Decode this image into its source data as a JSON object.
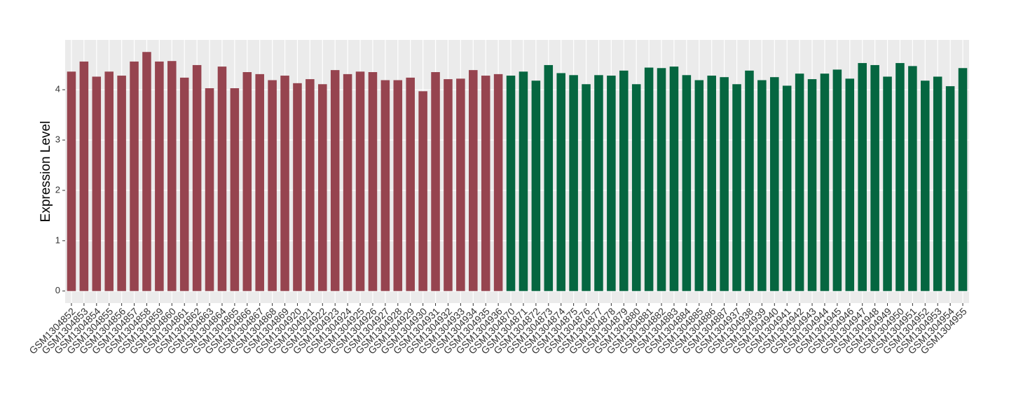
{
  "chart_data": {
    "type": "bar",
    "y_label": "Expression Level",
    "categories": [
      "GSM1304852",
      "GSM1304853",
      "GSM1304854",
      "GSM1304855",
      "GSM1304856",
      "GSM1304857",
      "GSM1304858",
      "GSM1304859",
      "GSM1304860",
      "GSM1304861",
      "GSM1304862",
      "GSM1304863",
      "GSM1304864",
      "GSM1304865",
      "GSM1304866",
      "GSM1304867",
      "GSM1304868",
      "GSM1304869",
      "GSM1304920",
      "GSM1304921",
      "GSM1304922",
      "GSM1304923",
      "GSM1304924",
      "GSM1304925",
      "GSM1304926",
      "GSM1304927",
      "GSM1304928",
      "GSM1304929",
      "GSM1304930",
      "GSM1304931",
      "GSM1304932",
      "GSM1304933",
      "GSM1304934",
      "GSM1304935",
      "GSM1304936",
      "GSM1304870",
      "GSM1304871",
      "GSM1304872",
      "GSM1304873",
      "GSM1304874",
      "GSM1304875",
      "GSM1304876",
      "GSM1304877",
      "GSM1304878",
      "GSM1304879",
      "GSM1304880",
      "GSM1304881",
      "GSM1304882",
      "GSM1304883",
      "GSM1304884",
      "GSM1304885",
      "GSM1304886",
      "GSM1304887",
      "GSM1304937",
      "GSM1304938",
      "GSM1304939",
      "GSM1304940",
      "GSM1304941",
      "GSM1304942",
      "GSM1304943",
      "GSM1304944",
      "GSM1304945",
      "GSM1304946",
      "GSM1304947",
      "GSM1304948",
      "GSM1304949",
      "GSM1304950",
      "GSM1304951",
      "GSM1304952",
      "GSM1304953",
      "GSM1304954",
      "GSM1304955"
    ],
    "values": [
      4.36,
      4.56,
      4.26,
      4.36,
      4.28,
      4.56,
      4.75,
      4.56,
      4.57,
      4.24,
      4.49,
      4.03,
      4.46,
      4.03,
      4.35,
      4.31,
      4.19,
      4.28,
      4.13,
      4.21,
      4.11,
      4.39,
      4.31,
      4.36,
      4.35,
      4.19,
      4.19,
      4.24,
      3.97,
      4.35,
      4.21,
      4.22,
      4.39,
      4.28,
      4.31,
      4.28,
      4.36,
      4.18,
      4.49,
      4.33,
      4.29,
      4.11,
      4.29,
      4.28,
      4.38,
      4.11,
      4.44,
      4.43,
      4.46,
      4.29,
      4.19,
      4.28,
      4.25,
      4.11,
      4.38,
      4.19,
      4.25,
      4.08,
      4.32,
      4.21,
      4.32,
      4.4,
      4.22,
      4.53,
      4.49,
      4.26,
      4.53,
      4.47,
      4.18,
      4.26,
      4.07,
      4.43
    ],
    "colors": [
      "#96444f",
      "#96444f",
      "#96444f",
      "#96444f",
      "#96444f",
      "#96444f",
      "#96444f",
      "#96444f",
      "#96444f",
      "#96444f",
      "#96444f",
      "#96444f",
      "#96444f",
      "#96444f",
      "#96444f",
      "#96444f",
      "#96444f",
      "#96444f",
      "#96444f",
      "#96444f",
      "#96444f",
      "#96444f",
      "#96444f",
      "#96444f",
      "#96444f",
      "#96444f",
      "#96444f",
      "#96444f",
      "#96444f",
      "#96444f",
      "#96444f",
      "#96444f",
      "#96444f",
      "#96444f",
      "#96444f",
      "#056640",
      "#056640",
      "#056640",
      "#056640",
      "#056640",
      "#056640",
      "#056640",
      "#056640",
      "#056640",
      "#056640",
      "#056640",
      "#056640",
      "#056640",
      "#056640",
      "#056640",
      "#056640",
      "#056640",
      "#056640",
      "#056640",
      "#056640",
      "#056640",
      "#056640",
      "#056640",
      "#056640",
      "#056640",
      "#056640",
      "#056640",
      "#056640",
      "#056640",
      "#056640",
      "#056640",
      "#056640",
      "#056640",
      "#056640",
      "#056640",
      "#056640",
      "#056640"
    ],
    "ylim": [
      -0.24,
      4.99
    ],
    "yticks": [
      0,
      1,
      2,
      3,
      4
    ],
    "grid": true
  }
}
